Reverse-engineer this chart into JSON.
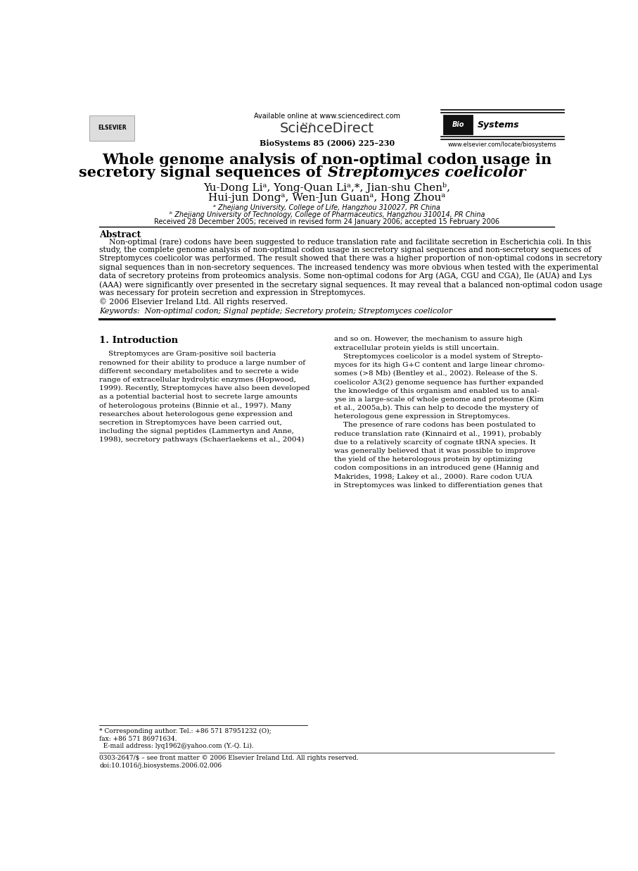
{
  "background_color": "#ffffff",
  "page_width": 9.07,
  "page_height": 12.37,
  "dpi": 100,
  "header": {
    "available_online_text": "Available online at www.sciencedirect.com",
    "sciencedirect_text": "ScienceDirect",
    "journal_info": "BioSystems 85 (2006) 225–230",
    "journal_url": "www.elsevier.com/locate/biosystems",
    "elsevier_text": "ELSEVIER"
  },
  "title_line1": "Whole genome analysis of non-optimal codon usage in",
  "title_line2_normal": "secretory signal sequences of ",
  "title_line2_italic": "Streptomyces coelicolor",
  "affil_a": "ᵃ Zhejiang University, College of Life, Hangzhou 310027, PR China",
  "affil_b": "ᵇ Zhejiang University of Technology, College of Pharmaceutics, Hangzhou 310014, PR China",
  "received_text": "Received 28 December 2005; received in revised form 24 January 2006; accepted 15 February 2006",
  "abstract_heading": "Abstract",
  "abstract_lines": [
    "    Non-optimal (rare) codons have been suggested to reduce translation rate and facilitate secretion in Escherichia coli. In this",
    "study, the complete genome analysis of non-optimal codon usage in secretory signal sequences and non-secretory sequences of",
    "Streptomyces coelicolor was performed. The result showed that there was a higher proportion of non-optimal codons in secretory",
    "signal sequences than in non-secretory sequences. The increased tendency was more obvious when tested with the experimental",
    "data of secretory proteins from proteomics analysis. Some non-optimal codons for Arg (AGA, CGU and CGA), Ile (AUA) and Lys",
    "(AAA) were significantly over presented in the secretary signal sequences. It may reveal that a balanced non-optimal codon usage",
    "was necessary for protein secretion and expression in Streptomyces.",
    "© 2006 Elsevier Ireland Ltd. All rights reserved."
  ],
  "keywords_text": "Keywords:  Non-optimal codon; Signal peptide; Secretory protein; Streptomyces coelicolor",
  "section1_heading": "1. Introduction",
  "col1_lines": [
    "    Streptomyces are Gram-positive soil bacteria",
    "renowned for their ability to produce a large number of",
    "different secondary metabolites and to secrete a wide",
    "range of extracellular hydrolytic enzymes (Hopwood,",
    "1999). Recently, Streptomyces have also been developed",
    "as a potential bacterial host to secrete large amounts",
    "of heterologous proteins (Binnie et al., 1997). Many",
    "researches about heterologous gene expression and",
    "secretion in Streptomyces have been carried out,",
    "including the signal peptides (Lammertyn and Anne,",
    "1998), secretory pathways (Schaerlaekens et al., 2004)"
  ],
  "col2_lines": [
    "and so on. However, the mechanism to assure high",
    "extracellular protein yields is still uncertain.",
    "    Streptomyces coelicolor is a model system of Strepto-",
    "myces for its high G+C content and large linear chromo-",
    "somes (>8 Mb) (Bentley et al., 2002). Release of the S.",
    "coelicolor A3(2) genome sequence has further expanded",
    "the knowledge of this organism and enabled us to anal-",
    "yse in a large-scale of whole genome and proteome (Kim",
    "et al., 2005a,b). This can help to decode the mystery of",
    "heterologous gene expression in Streptomyces.",
    "    The presence of rare codons has been postulated to",
    "reduce translation rate (Kinnaird et al., 1991), probably",
    "due to a relatively scarcity of cognate tRNA species. It",
    "was generally believed that it was possible to improve",
    "the yield of the heterologous protein by optimizing",
    "codon compositions in an introduced gene (Hannig and",
    "Makrides, 1998; Lakey et al., 2000). Rare codon UUA",
    "in Streptomyces was linked to differentiation genes that"
  ],
  "footnote_lines": [
    "* Corresponding author. Tel.: +86 571 87951232 (O);",
    "fax: +86 571 86971634.",
    "  E-mail address: lyq1962@yahoo.com (Y.-Q. Li)."
  ],
  "footer_line1": "0303-2647/$ – see front matter © 2006 Elsevier Ireland Ltd. All rights reserved.",
  "footer_line2": "doi:10.1016/j.biosystems.2006.02.006"
}
